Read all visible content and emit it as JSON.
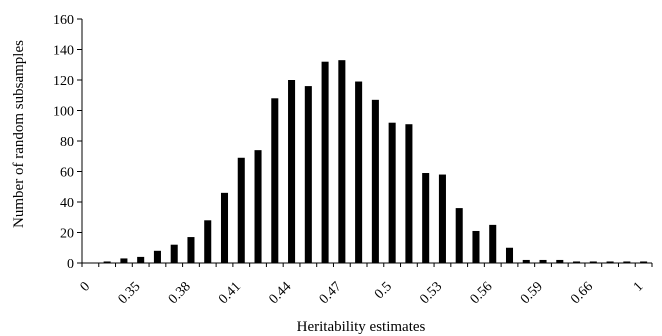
{
  "chart_data": {
    "type": "bar",
    "xlabel": "Heritability estimates",
    "ylabel": "Number of random subsamples",
    "ylim": [
      0,
      160
    ],
    "yticks": [
      "0",
      "20",
      "40",
      "60",
      "80",
      "100",
      "120",
      "140",
      "160"
    ],
    "xtick_labels": [
      "0",
      "0.35",
      "0.38",
      "0.41",
      "0.44",
      "0.47",
      "0.5",
      "0.53",
      "0.56",
      "0.59",
      "0.66",
      "1"
    ],
    "values": [
      0,
      1,
      3,
      4,
      8,
      12,
      17,
      28,
      46,
      69,
      74,
      108,
      120,
      116,
      132,
      133,
      119,
      107,
      92,
      91,
      59,
      58,
      36,
      21,
      25,
      10,
      2,
      2,
      2,
      1,
      1,
      1,
      1,
      1
    ],
    "bar_color": "#000000",
    "grid": false,
    "legend": "none"
  }
}
